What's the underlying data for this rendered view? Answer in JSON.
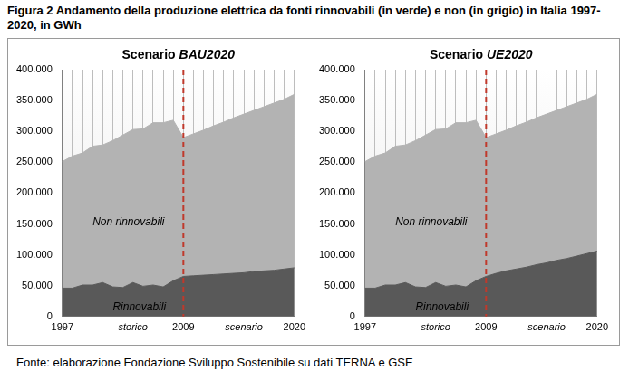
{
  "title": "Figura 2 Andamento della produzione elettrica da fonti rinnovabili (in verde) e non (in grigio) in Italia 1997-2020, in GWh",
  "source": "Fonte: elaborazione Fondazione Sviluppo Sostenibile su dati TERNA e GSE",
  "chart_data": [
    {
      "type": "area",
      "title": "Scenario BAU2020",
      "stacked": true,
      "grid": true,
      "categories": [
        "1997",
        null,
        null,
        null,
        null,
        null,
        null,
        "storico",
        null,
        null,
        null,
        null,
        "2009",
        null,
        null,
        null,
        null,
        null,
        "scenario",
        null,
        null,
        null,
        null,
        "2020"
      ],
      "series": [
        {
          "name": "Rinnovabili",
          "color": "#595959",
          "values": [
            46000,
            46000,
            51000,
            51000,
            55000,
            48000,
            47000,
            55000,
            49000,
            51000,
            48000,
            58000,
            65000,
            66000,
            67000,
            68000,
            69000,
            70000,
            71000,
            73000,
            74000,
            75000,
            77000,
            79000
          ]
        },
        {
          "name": "Non rinnovabili",
          "color": "#b3b3b3",
          "values": [
            205000,
            214000,
            214000,
            225000,
            223000,
            237000,
            247000,
            248000,
            255000,
            263000,
            266000,
            260000,
            225000,
            230000,
            235000,
            241000,
            246000,
            252000,
            257000,
            261000,
            266000,
            271000,
            275000,
            281000
          ]
        }
      ],
      "vline": {
        "x": "2009",
        "color": "#c0392b",
        "line_style": "dashed"
      },
      "ylim": [
        0,
        400000
      ],
      "yticks": [
        0,
        {
          "value": 50000,
          "label": "50.000"
        },
        {
          "value": 100000,
          "label": "100.000"
        },
        {
          "value": 150000,
          "label": "150.000"
        },
        {
          "value": 200000,
          "label": "200.000"
        },
        {
          "value": 250000,
          "label": "250.000"
        },
        {
          "value": 300000,
          "label": "300.000"
        },
        {
          "value": 350000,
          "label": "350.000"
        },
        {
          "value": 400000,
          "label": "400.000"
        }
      ]
    },
    {
      "type": "area",
      "title": "Scenario UE2020",
      "stacked": true,
      "grid": true,
      "categories": [
        "1997",
        null,
        null,
        null,
        null,
        null,
        null,
        "storico",
        null,
        null,
        null,
        null,
        "2009",
        null,
        null,
        null,
        null,
        null,
        "scenario",
        null,
        null,
        null,
        null,
        "2020"
      ],
      "series": [
        {
          "name": "Rinnovabili",
          "color": "#595959",
          "values": [
            46000,
            46000,
            51000,
            51000,
            55000,
            48000,
            47000,
            55000,
            49000,
            51000,
            48000,
            58000,
            65000,
            70000,
            74000,
            77000,
            80000,
            84000,
            87000,
            91000,
            94000,
            98000,
            102000,
            106000
          ]
        },
        {
          "name": "Non rinnovabili",
          "color": "#b3b3b3",
          "values": [
            205000,
            214000,
            214000,
            225000,
            223000,
            237000,
            247000,
            248000,
            255000,
            263000,
            266000,
            260000,
            225000,
            226000,
            228000,
            232000,
            235000,
            238000,
            241000,
            243000,
            246000,
            248000,
            250000,
            254000
          ]
        }
      ],
      "vline": {
        "x": "2009",
        "color": "#c0392b",
        "line_style": "dashed"
      },
      "ylim": [
        0,
        400000
      ],
      "yticks": [
        0,
        {
          "value": 50000,
          "label": "50.000"
        },
        {
          "value": 100000,
          "label": "100.000"
        },
        {
          "value": 150000,
          "label": "150.000"
        },
        {
          "value": 200000,
          "label": "200.000"
        },
        {
          "value": 250000,
          "label": "250.000"
        },
        {
          "value": 300000,
          "label": "300.000"
        },
        {
          "value": 350000,
          "label": "350.000"
        },
        {
          "value": 400000,
          "label": "400.000"
        }
      ]
    }
  ]
}
